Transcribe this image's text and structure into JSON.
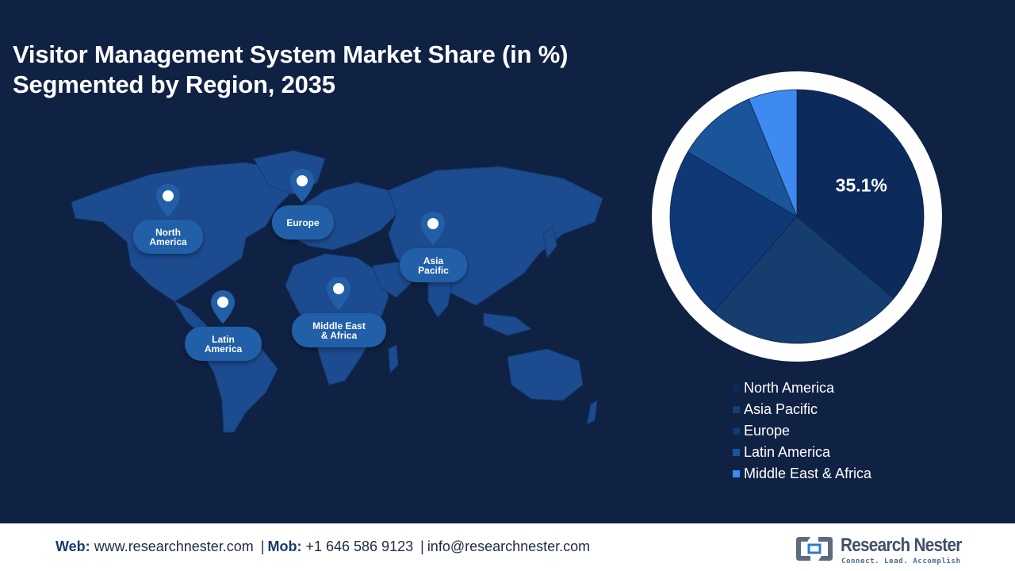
{
  "title": {
    "line1": "Visitor Management System Market Share (in %)",
    "line2": "Segmented by Region, 2035"
  },
  "map": {
    "pins": [
      {
        "id": "north-america",
        "label": "North\nAmerica"
      },
      {
        "id": "europe",
        "label": "Europe"
      },
      {
        "id": "asia-pacific",
        "label": "Asia\nPacific"
      },
      {
        "id": "latin-america",
        "label": "Latin\nAmerica"
      },
      {
        "id": "middle-east-africa",
        "label": "Middle East\n& Africa"
      }
    ]
  },
  "chart_data": {
    "type": "pie",
    "title": "Visitor Management System Market Share (in %) Segmented by Region, 2035",
    "series": [
      {
        "name": "North America",
        "value": 35.1,
        "color": "#0c2a5a",
        "label": "35.1%"
      },
      {
        "name": "Asia Pacific",
        "value": 24.5,
        "color": "#153d6d"
      },
      {
        "name": "Europe",
        "value": 21.4,
        "color": "#0f3877"
      },
      {
        "name": "Latin America",
        "value": 10.0,
        "color": "#1a5599"
      },
      {
        "name": "Middle East & Africa",
        "value": 6.0,
        "color": "#3f8af0"
      }
    ],
    "legend_position": "bottom-right"
  },
  "legend": [
    {
      "label": "North America",
      "color": "#0c2a5a"
    },
    {
      "label": "Asia Pacific",
      "color": "#153d6d"
    },
    {
      "label": "Europe",
      "color": "#0f3877"
    },
    {
      "label": "Latin America",
      "color": "#1a5599"
    },
    {
      "label": "Middle East & Africa",
      "color": "#3f8af0"
    }
  ],
  "footer": {
    "web_label": "Web:",
    "web_value": "www.researchnester.com",
    "separator": "|",
    "mob_label": "Mob:",
    "mob_value": "+1 646 586 9123",
    "email": "info@researchnester.com",
    "logo_name": "Research Nester",
    "logo_tagline": "Connect. Lead. Accomplish"
  }
}
